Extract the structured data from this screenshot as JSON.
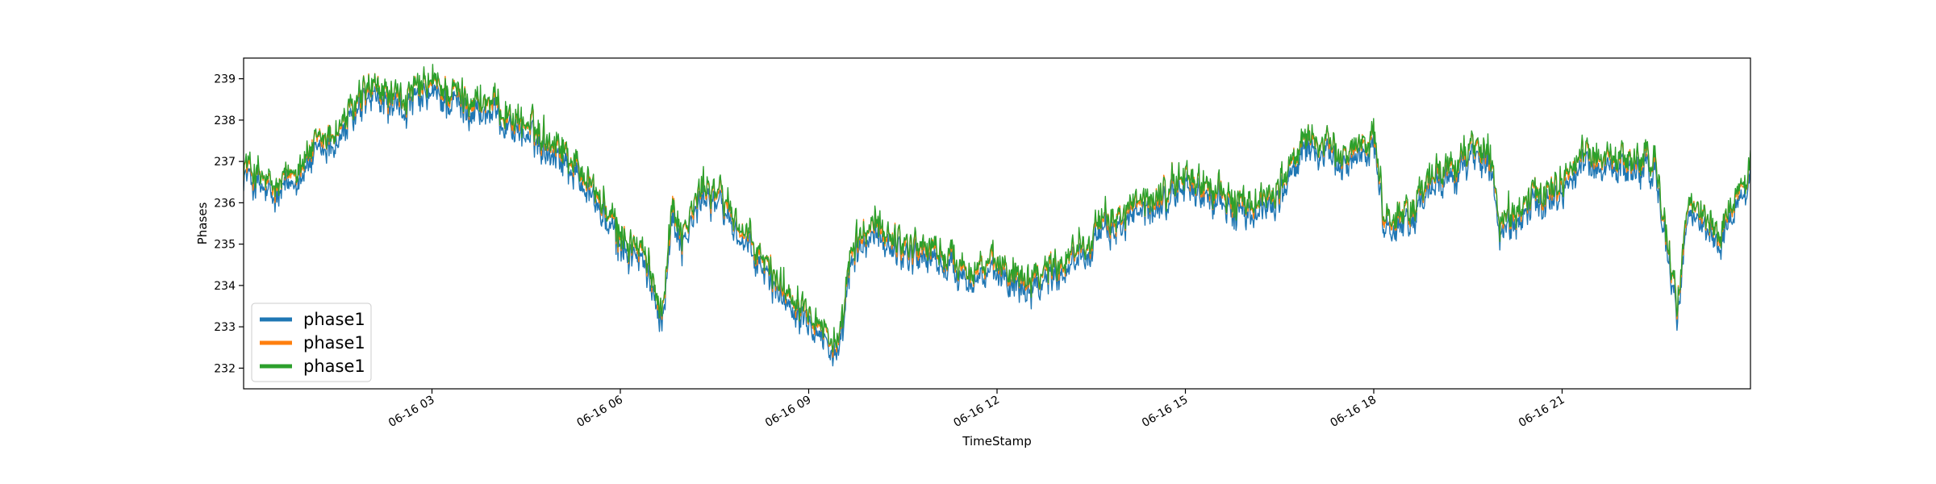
{
  "chart_data": {
    "type": "line",
    "title": "",
    "xlabel": "TimeStamp",
    "ylabel": "Phases",
    "x_start": "2021-06-16 00:00",
    "x_end": "2021-06-17 00:00",
    "xlim": [
      "2021-06-16 00:00",
      "2021-06-17 00:00"
    ],
    "ylim": [
      231.5,
      239.5
    ],
    "x_ticks": [
      {
        "time": "2021-06-16 03:00",
        "label": "06-16 03"
      },
      {
        "time": "2021-06-16 06:00",
        "label": "06-16 06"
      },
      {
        "time": "2021-06-16 09:00",
        "label": "06-16 09"
      },
      {
        "time": "2021-06-16 12:00",
        "label": "06-16 12"
      },
      {
        "time": "2021-06-16 15:00",
        "label": "06-16 15"
      },
      {
        "time": "2021-06-16 18:00",
        "label": "06-16 18"
      },
      {
        "time": "2021-06-16 21:00",
        "label": "06-16 21"
      }
    ],
    "y_ticks": [
      232,
      233,
      234,
      235,
      236,
      237,
      238,
      239
    ],
    "y_tick_labels": [
      "232",
      "233",
      "234",
      "235",
      "236",
      "237",
      "238",
      "239"
    ],
    "grid": false,
    "legend": {
      "placement": "lower-left",
      "entries": [
        "phase1",
        "phase1",
        "phase1"
      ]
    },
    "series": [
      {
        "name": "phase1",
        "color": "#1f77b4",
        "offset": -0.25,
        "x": [
          "00:00",
          "00:30",
          "01:00",
          "01:30",
          "02:00",
          "02:30",
          "03:00",
          "03:30",
          "04:00",
          "04:30",
          "05:00",
          "05:30",
          "06:00",
          "06:20",
          "06:40",
          "06:50",
          "07:00",
          "07:20",
          "07:40",
          "08:00",
          "08:20",
          "08:40",
          "09:00",
          "09:20",
          "09:30",
          "09:40",
          "10:00",
          "10:30",
          "11:00",
          "11:30",
          "12:00",
          "12:30",
          "13:00",
          "13:30",
          "14:00",
          "14:30",
          "15:00",
          "15:30",
          "16:00",
          "16:30",
          "17:00",
          "17:30",
          "18:00",
          "18:10",
          "18:30",
          "19:00",
          "19:30",
          "19:50",
          "20:00",
          "20:30",
          "21:00",
          "21:20",
          "21:30",
          "22:00",
          "22:30",
          "22:50",
          "23:00",
          "23:30",
          "24:00"
        ],
        "values": [
          236.7,
          236.0,
          236.9,
          237.5,
          238.5,
          238.2,
          238.6,
          238.3,
          238.1,
          237.6,
          237.2,
          236.3,
          234.9,
          234.6,
          233.2,
          235.7,
          235.0,
          236.2,
          235.8,
          234.9,
          234.2,
          233.6,
          233.3,
          232.5,
          232.2,
          234.5,
          235.2,
          234.8,
          234.6,
          234.2,
          234.2,
          234.0,
          234.3,
          235.0,
          235.5,
          235.8,
          236.4,
          236.0,
          235.6,
          236.2,
          237.4,
          236.8,
          237.5,
          235.3,
          235.5,
          236.4,
          237.0,
          237.1,
          235.2,
          235.8,
          236.3,
          236.9,
          236.9,
          236.8,
          236.7,
          233.0,
          235.8,
          235.0,
          236.6
        ]
      },
      {
        "name": "phase1",
        "color": "#ff7f0e",
        "offset": 0.0,
        "x": [
          "00:00",
          "00:30",
          "01:00",
          "01:30",
          "02:00",
          "02:30",
          "03:00",
          "03:30",
          "04:00",
          "04:30",
          "05:00",
          "05:30",
          "06:00",
          "06:20",
          "06:40",
          "06:50",
          "07:00",
          "07:20",
          "07:40",
          "08:00",
          "08:20",
          "08:40",
          "09:00",
          "09:20",
          "09:30",
          "09:40",
          "10:00",
          "10:30",
          "11:00",
          "11:30",
          "12:00",
          "12:30",
          "13:00",
          "13:30",
          "14:00",
          "14:30",
          "15:00",
          "15:30",
          "16:00",
          "16:30",
          "17:00",
          "17:30",
          "18:00",
          "18:10",
          "18:30",
          "19:00",
          "19:30",
          "19:50",
          "20:00",
          "20:30",
          "21:00",
          "21:20",
          "21:30",
          "22:00",
          "22:30",
          "22:50",
          "23:00",
          "23:30",
          "24:00"
        ],
        "values": [
          236.95,
          236.25,
          237.15,
          237.75,
          238.75,
          238.45,
          238.85,
          238.55,
          238.35,
          237.85,
          237.45,
          236.55,
          235.15,
          234.85,
          233.45,
          235.95,
          235.25,
          236.45,
          236.05,
          235.15,
          234.45,
          233.85,
          233.55,
          232.75,
          232.45,
          234.75,
          235.45,
          235.05,
          234.85,
          234.45,
          234.45,
          234.25,
          234.55,
          235.25,
          235.75,
          236.05,
          236.65,
          236.25,
          235.85,
          236.45,
          237.65,
          237.05,
          237.75,
          235.55,
          235.75,
          236.65,
          237.25,
          237.35,
          235.45,
          236.05,
          236.55,
          237.15,
          237.15,
          237.05,
          236.95,
          233.25,
          236.05,
          235.25,
          236.85
        ]
      },
      {
        "name": "phase1",
        "color": "#2ca02c",
        "offset": 0.05,
        "x": [
          "00:00",
          "00:30",
          "01:00",
          "01:30",
          "02:00",
          "02:30",
          "03:00",
          "03:30",
          "04:00",
          "04:30",
          "05:00",
          "05:30",
          "06:00",
          "06:20",
          "06:40",
          "06:50",
          "07:00",
          "07:20",
          "07:40",
          "08:00",
          "08:20",
          "08:40",
          "09:00",
          "09:20",
          "09:30",
          "09:40",
          "10:00",
          "10:30",
          "11:00",
          "11:30",
          "12:00",
          "12:30",
          "13:00",
          "13:30",
          "14:00",
          "14:30",
          "15:00",
          "15:30",
          "16:00",
          "16:30",
          "17:00",
          "17:30",
          "18:00",
          "18:10",
          "18:30",
          "19:00",
          "19:30",
          "19:50",
          "20:00",
          "20:30",
          "21:00",
          "21:20",
          "21:30",
          "22:00",
          "22:30",
          "22:50",
          "23:00",
          "23:30",
          "24:00"
        ],
        "values": [
          237.0,
          236.3,
          237.2,
          237.8,
          238.8,
          238.5,
          238.9,
          238.6,
          238.4,
          237.9,
          237.5,
          236.6,
          235.2,
          234.9,
          233.5,
          236.0,
          235.3,
          236.5,
          236.1,
          235.2,
          234.5,
          233.9,
          233.6,
          232.8,
          232.5,
          234.8,
          235.5,
          235.1,
          234.9,
          234.5,
          234.5,
          234.3,
          234.6,
          235.3,
          235.8,
          236.1,
          236.7,
          236.3,
          235.9,
          236.5,
          237.7,
          237.1,
          237.8,
          235.6,
          235.8,
          236.7,
          237.3,
          237.4,
          235.5,
          236.1,
          236.6,
          237.2,
          237.2,
          237.1,
          237.0,
          233.3,
          236.1,
          235.3,
          236.9
        ]
      }
    ]
  }
}
